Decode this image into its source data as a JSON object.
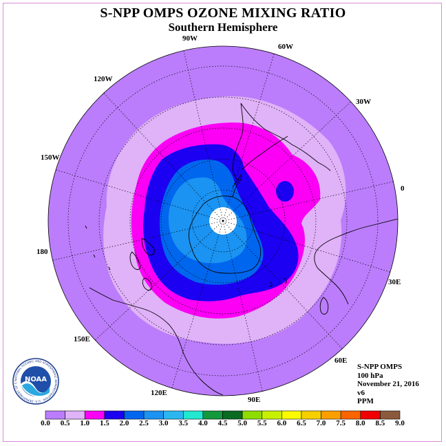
{
  "title": "S-NPP OMPS OZONE MIXING RATIO",
  "subtitle": "Southern Hemisphere",
  "longitude_labels": [
    {
      "text": "90W"
    },
    {
      "text": "60W"
    },
    {
      "text": "30W"
    },
    {
      "text": "0"
    },
    {
      "text": "30E"
    },
    {
      "text": "60E"
    },
    {
      "text": "90E"
    },
    {
      "text": "120E"
    },
    {
      "text": "150E"
    },
    {
      "text": "180"
    },
    {
      "text": "150W"
    },
    {
      "text": "120W"
    }
  ],
  "info": {
    "instrument": "S-NPP OMPS",
    "level": "100 hPa",
    "date": "November 21, 2016",
    "version": "v6",
    "units": "PPM"
  },
  "legend": {
    "ticks": [
      "0.0",
      "0.5",
      "1.0",
      "1.5",
      "2.0",
      "2.5",
      "3.0",
      "3.5",
      "4.0",
      "4.5",
      "5.0",
      "5.5",
      "6.0",
      "6.5",
      "7.0",
      "7.5",
      "8.0",
      "8.5",
      "9.0"
    ],
    "colors": [
      "#bb7dfb",
      "#e0b2f8",
      "#fb00f5",
      "#1c00f2",
      "#0066ee",
      "#1a93f2",
      "#2bb6f0",
      "#21e8d1",
      "#13983d",
      "#096b22",
      "#8edd00",
      "#c7f000",
      "#fbfb00",
      "#f7cf00",
      "#fb9f00",
      "#fa6500",
      "#f00000",
      "#8b5a3c"
    ]
  },
  "logo": {
    "text": "NOAA",
    "ring_text": "NATIONAL OCEANIC AND ATMOSPHERIC ADMINISTRATION · U.S. DEPARTMENT OF COMMERCE"
  },
  "colors": {
    "band_0_0.5": "#bb7dfb",
    "band_0.5_1.0": "#e0b2f8",
    "band_1.0_1.5": "#fb00f5",
    "band_1.5_2.0": "#1c00f2",
    "band_2.0_2.5": "#0066ee",
    "band_2.5_3.0": "#1a93f2",
    "pole_gap": "#ffffff"
  }
}
